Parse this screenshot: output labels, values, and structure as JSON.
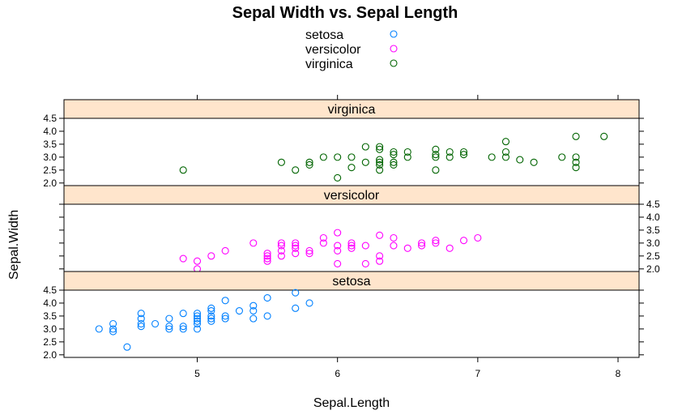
{
  "chart_data": {
    "type": "scatter",
    "title": "Sepal Width vs. Sepal Length",
    "xlabel": "Sepal.Length",
    "ylabel": "Sepal.Width",
    "xlim": [
      4.05,
      8.15
    ],
    "ylim": [
      1.9,
      4.5
    ],
    "xticks": [
      5,
      6,
      7,
      8
    ],
    "xtick_labels": [
      "5",
      "6",
      "7",
      "8"
    ],
    "yticks": [
      2.0,
      2.5,
      3.0,
      3.5,
      4.0,
      4.5
    ],
    "ytick_labels": [
      "2.0",
      "2.5",
      "3.0",
      "3.5",
      "4.0",
      "4.5"
    ],
    "grid": false,
    "legend_position": "top",
    "strip_color": "#ffe5cc",
    "series": [
      {
        "name": "setosa",
        "color": "#0080ff",
        "points": [
          [
            4.3,
            3.0
          ],
          [
            4.4,
            2.9
          ],
          [
            4.4,
            3.0
          ],
          [
            4.4,
            3.2
          ],
          [
            4.5,
            2.3
          ],
          [
            4.6,
            3.1
          ],
          [
            4.6,
            3.2
          ],
          [
            4.6,
            3.4
          ],
          [
            4.6,
            3.6
          ],
          [
            4.7,
            3.2
          ],
          [
            4.8,
            3.0
          ],
          [
            4.8,
            3.1
          ],
          [
            4.8,
            3.4
          ],
          [
            4.9,
            3.0
          ],
          [
            4.9,
            3.1
          ],
          [
            4.9,
            3.6
          ],
          [
            5.0,
            3.0
          ],
          [
            5.0,
            3.2
          ],
          [
            5.0,
            3.3
          ],
          [
            5.0,
            3.4
          ],
          [
            5.0,
            3.5
          ],
          [
            5.0,
            3.6
          ],
          [
            5.1,
            3.3
          ],
          [
            5.1,
            3.4
          ],
          [
            5.1,
            3.5
          ],
          [
            5.1,
            3.7
          ],
          [
            5.1,
            3.8
          ],
          [
            5.2,
            3.4
          ],
          [
            5.2,
            3.5
          ],
          [
            5.2,
            4.1
          ],
          [
            5.3,
            3.7
          ],
          [
            5.4,
            3.4
          ],
          [
            5.4,
            3.7
          ],
          [
            5.4,
            3.9
          ],
          [
            5.5,
            3.5
          ],
          [
            5.5,
            4.2
          ],
          [
            5.7,
            3.8
          ],
          [
            5.7,
            4.4
          ],
          [
            5.8,
            4.0
          ]
        ]
      },
      {
        "name": "versicolor",
        "color": "#ff00ff",
        "points": [
          [
            4.9,
            2.4
          ],
          [
            5.0,
            2.0
          ],
          [
            5.0,
            2.3
          ],
          [
            5.1,
            2.5
          ],
          [
            5.2,
            2.7
          ],
          [
            5.4,
            3.0
          ],
          [
            5.5,
            2.3
          ],
          [
            5.5,
            2.4
          ],
          [
            5.5,
            2.5
          ],
          [
            5.5,
            2.6
          ],
          [
            5.6,
            2.5
          ],
          [
            5.6,
            2.7
          ],
          [
            5.6,
            2.9
          ],
          [
            5.6,
            3.0
          ],
          [
            5.7,
            2.6
          ],
          [
            5.7,
            2.8
          ],
          [
            5.7,
            2.9
          ],
          [
            5.7,
            3.0
          ],
          [
            5.8,
            2.6
          ],
          [
            5.8,
            2.7
          ],
          [
            5.9,
            3.0
          ],
          [
            5.9,
            3.2
          ],
          [
            6.0,
            2.2
          ],
          [
            6.0,
            2.7
          ],
          [
            6.0,
            2.9
          ],
          [
            6.0,
            3.4
          ],
          [
            6.1,
            2.8
          ],
          [
            6.1,
            2.9
          ],
          [
            6.1,
            3.0
          ],
          [
            6.2,
            2.2
          ],
          [
            6.2,
            2.9
          ],
          [
            6.3,
            2.3
          ],
          [
            6.3,
            2.5
          ],
          [
            6.3,
            3.3
          ],
          [
            6.4,
            2.9
          ],
          [
            6.4,
            3.2
          ],
          [
            6.5,
            2.8
          ],
          [
            6.6,
            2.9
          ],
          [
            6.6,
            3.0
          ],
          [
            6.7,
            3.0
          ],
          [
            6.7,
            3.1
          ],
          [
            6.8,
            2.8
          ],
          [
            6.9,
            3.1
          ],
          [
            7.0,
            3.2
          ]
        ]
      },
      {
        "name": "virginica",
        "color": "#006400",
        "points": [
          [
            4.9,
            2.5
          ],
          [
            5.6,
            2.8
          ],
          [
            5.7,
            2.5
          ],
          [
            5.8,
            2.7
          ],
          [
            5.8,
            2.8
          ],
          [
            5.9,
            3.0
          ],
          [
            6.0,
            2.2
          ],
          [
            6.0,
            3.0
          ],
          [
            6.1,
            2.6
          ],
          [
            6.1,
            3.0
          ],
          [
            6.2,
            2.8
          ],
          [
            6.2,
            3.4
          ],
          [
            6.3,
            2.5
          ],
          [
            6.3,
            2.7
          ],
          [
            6.3,
            2.8
          ],
          [
            6.3,
            2.9
          ],
          [
            6.3,
            3.3
          ],
          [
            6.3,
            3.4
          ],
          [
            6.4,
            2.7
          ],
          [
            6.4,
            2.8
          ],
          [
            6.4,
            3.1
          ],
          [
            6.4,
            3.2
          ],
          [
            6.5,
            3.0
          ],
          [
            6.5,
            3.2
          ],
          [
            6.7,
            2.5
          ],
          [
            6.7,
            3.0
          ],
          [
            6.7,
            3.1
          ],
          [
            6.7,
            3.3
          ],
          [
            6.8,
            3.0
          ],
          [
            6.8,
            3.2
          ],
          [
            6.9,
            3.1
          ],
          [
            6.9,
            3.2
          ],
          [
            7.1,
            3.0
          ],
          [
            7.2,
            3.0
          ],
          [
            7.2,
            3.2
          ],
          [
            7.2,
            3.6
          ],
          [
            7.3,
            2.9
          ],
          [
            7.4,
            2.8
          ],
          [
            7.6,
            3.0
          ],
          [
            7.7,
            2.6
          ],
          [
            7.7,
            2.8
          ],
          [
            7.7,
            3.0
          ],
          [
            7.7,
            3.8
          ],
          [
            7.9,
            3.8
          ]
        ]
      }
    ],
    "panels": [
      "virginica",
      "versicolor",
      "setosa"
    ]
  }
}
